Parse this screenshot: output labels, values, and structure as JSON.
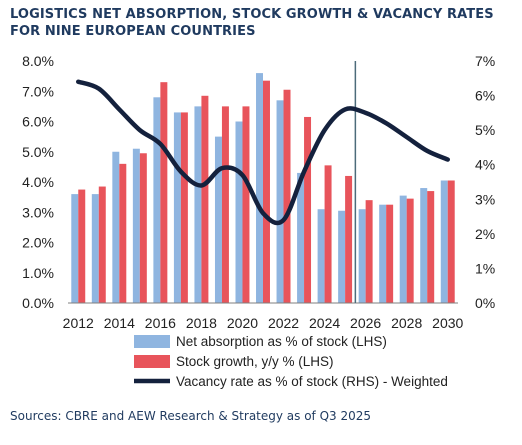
{
  "title": "LOGISTICS NET ABSORPTION, STOCK GROWTH & VACANCY RATES FOR NINE EUROPEAN COUNTRIES",
  "source": "Sources: CBRE and AEW Research & Strategy as of Q3 2025",
  "colors": {
    "absorption": "#8fb5e0",
    "stock_growth": "#e8545b",
    "vacancy": "#14213d",
    "divider": "#4d6b7a"
  },
  "chart_data": {
    "type": "bar",
    "categories": [
      "2012",
      "2013",
      "2014",
      "2015",
      "2016",
      "2017",
      "2018",
      "2019",
      "2020",
      "2021",
      "2022",
      "2023",
      "2024",
      "2025",
      "2026",
      "2027",
      "2028",
      "2029",
      "2030"
    ],
    "x_tick_labels": [
      "2012",
      "2014",
      "2016",
      "2018",
      "2020",
      "2022",
      "2024",
      "2026",
      "2028",
      "2030"
    ],
    "left_axis": {
      "ylim": [
        0,
        8
      ],
      "ticks": [
        "0.0%",
        "1.0%",
        "2.0%",
        "3.0%",
        "4.0%",
        "5.0%",
        "6.0%",
        "7.0%",
        "8.0%"
      ]
    },
    "right_axis": {
      "ylim": [
        0,
        7
      ],
      "ticks": [
        "0%",
        "1%",
        "2%",
        "3%",
        "4%",
        "5%",
        "6%",
        "7%"
      ]
    },
    "forecast_divider_after": "2025",
    "series": [
      {
        "name": "Net absorption as % of stock (LHS)",
        "type": "bar",
        "axis": "left",
        "values": [
          3.6,
          3.6,
          5.0,
          5.1,
          6.8,
          6.3,
          6.5,
          5.5,
          6.0,
          7.6,
          6.7,
          4.3,
          3.1,
          3.05,
          3.1,
          3.25,
          3.55,
          3.8,
          4.05
        ]
      },
      {
        "name": "Stock growth, y/y % (LHS)",
        "type": "bar",
        "axis": "left",
        "values": [
          3.75,
          3.85,
          4.6,
          4.95,
          7.3,
          6.3,
          6.85,
          6.5,
          6.5,
          7.35,
          7.05,
          6.15,
          4.55,
          4.2,
          3.4,
          3.25,
          3.45,
          3.7,
          4.05
        ]
      },
      {
        "name": "Vacancy rate as % of stock (RHS) - Weighted",
        "type": "line",
        "axis": "right",
        "x": [
          2012,
          2013,
          2014,
          2015,
          2016,
          2017,
          2018,
          2019,
          2020,
          2021,
          2022,
          2023,
          2024,
          2025,
          2026,
          2027,
          2028,
          2029,
          2030
        ],
        "values": [
          6.4,
          6.2,
          5.6,
          5.0,
          4.6,
          3.8,
          3.4,
          3.9,
          3.7,
          2.6,
          2.4,
          3.8,
          5.0,
          5.6,
          5.5,
          5.2,
          4.8,
          4.4,
          4.15
        ]
      }
    ]
  }
}
